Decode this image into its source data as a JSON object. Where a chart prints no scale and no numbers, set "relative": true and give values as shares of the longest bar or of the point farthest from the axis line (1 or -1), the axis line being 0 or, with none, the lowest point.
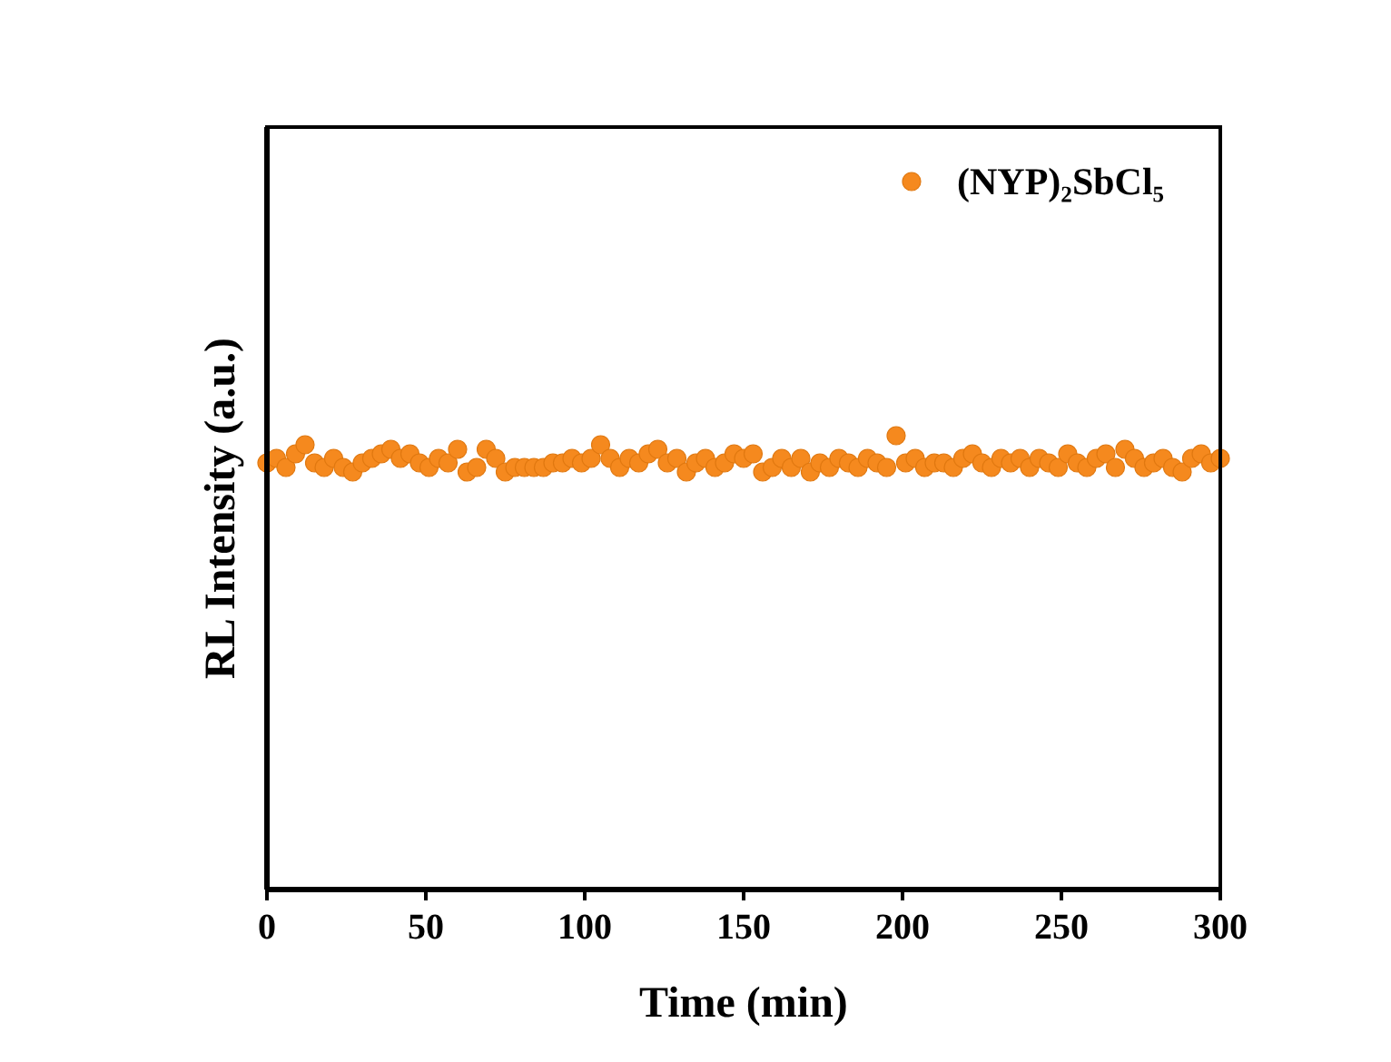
{
  "chart_data": {
    "type": "scatter",
    "xlabel": "Time (min)",
    "ylabel": "RL Intensity (a.u.)",
    "relative": true,
    "xlim": [
      0,
      300
    ],
    "xticks": [
      0,
      50,
      100,
      150,
      200,
      250,
      300
    ],
    "legend": "top right",
    "marker": "circle",
    "grid": false,
    "series": [
      {
        "name": "(NYP)₂SbCl₅",
        "color": "#f5891e",
        "x": [
          0,
          3,
          6,
          9,
          12,
          15,
          18,
          21,
          24,
          27,
          30,
          33,
          36,
          39,
          42,
          45,
          48,
          51,
          54,
          57,
          60,
          63,
          66,
          69,
          72,
          75,
          78,
          81,
          84,
          87,
          90,
          93,
          96,
          99,
          102,
          105,
          108,
          111,
          114,
          117,
          120,
          123,
          126,
          129,
          132,
          135,
          138,
          141,
          144,
          147,
          150,
          153,
          156,
          159,
          162,
          165,
          168,
          171,
          174,
          177,
          180,
          183,
          186,
          189,
          192,
          195,
          198,
          201,
          204,
          207,
          210,
          213,
          216,
          219,
          222,
          225,
          228,
          231,
          234,
          237,
          240,
          243,
          246,
          249,
          252,
          255,
          258,
          261,
          264,
          267,
          270,
          273,
          276,
          279,
          282,
          285,
          288,
          291,
          294,
          297,
          300
        ],
        "values": [
          0.94,
          0.95,
          0.93,
          0.96,
          0.98,
          0.94,
          0.93,
          0.95,
          0.93,
          0.92,
          0.94,
          0.95,
          0.96,
          0.97,
          0.95,
          0.96,
          0.94,
          0.93,
          0.95,
          0.94,
          0.97,
          0.92,
          0.93,
          0.97,
          0.95,
          0.92,
          0.93,
          0.93,
          0.93,
          0.93,
          0.94,
          0.94,
          0.95,
          0.94,
          0.95,
          0.98,
          0.95,
          0.93,
          0.95,
          0.94,
          0.96,
          0.97,
          0.94,
          0.95,
          0.92,
          0.94,
          0.95,
          0.93,
          0.94,
          0.96,
          0.95,
          0.96,
          0.92,
          0.93,
          0.95,
          0.93,
          0.95,
          0.92,
          0.94,
          0.93,
          0.95,
          0.94,
          0.93,
          0.95,
          0.94,
          0.93,
          1.0,
          0.94,
          0.95,
          0.93,
          0.94,
          0.94,
          0.93,
          0.95,
          0.96,
          0.94,
          0.93,
          0.95,
          0.94,
          0.95,
          0.93,
          0.95,
          0.94,
          0.93,
          0.96,
          0.94,
          0.93,
          0.95,
          0.96,
          0.93,
          0.97,
          0.95,
          0.93,
          0.94,
          0.95,
          0.93,
          0.92,
          0.95,
          0.96,
          0.94,
          0.95
        ]
      }
    ]
  }
}
